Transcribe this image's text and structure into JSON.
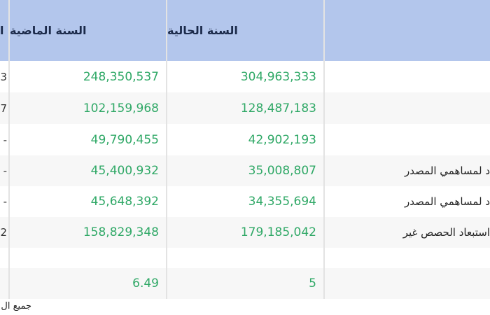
{
  "header": {
    "col_partial": "ا",
    "col_last_year": "السنة الماضية",
    "col_current_year": "السنة الحالية",
    "col_item": ""
  },
  "rows": [
    {
      "partial": "3",
      "last": "248,350,537",
      "current": "304,963,333",
      "label": ""
    },
    {
      "partial": "7",
      "last": "102,159,968",
      "current": "128,487,183",
      "label": ""
    },
    {
      "partial": "-",
      "last": "49,790,455",
      "current": "42,902,193",
      "label": ""
    },
    {
      "partial": "-",
      "last": "45,400,932",
      "current": "35,008,807",
      "label": "د لمساهمي المصدر"
    },
    {
      "partial": "-",
      "last": "45,648,392",
      "current": "34,355,694",
      "label": "د لمساهمي المصدر"
    },
    {
      "partial": "2",
      "last": "158,829,348",
      "current": "179,185,042",
      "label": "استبعاد الحصص غير"
    },
    {
      "partial": "",
      "last": "",
      "current": "",
      "label": ""
    },
    {
      "partial": "",
      "last": "6.49",
      "current": "5",
      "label": ""
    }
  ],
  "footer": {
    "note": "جميع ال"
  },
  "colors": {
    "header_bg": "#b3c6ec",
    "number_green": "#2fa866",
    "alt_row": "#f7f7f7"
  }
}
